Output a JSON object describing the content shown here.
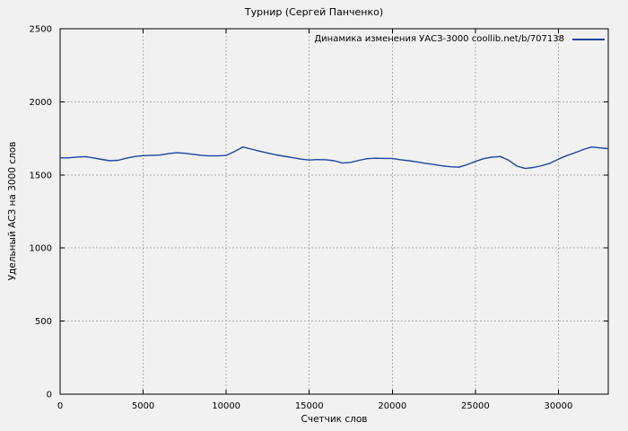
{
  "chart_data": {
    "type": "line",
    "title": "Турнир (Сергей Панченко)",
    "xlabel": "Счетчик слов",
    "ylabel": "Удельный АСЗ на 3000 слов",
    "xlim": [
      0,
      33000
    ],
    "ylim": [
      0,
      2500
    ],
    "xticks": [
      0,
      5000,
      10000,
      15000,
      20000,
      25000,
      30000
    ],
    "yticks": [
      0,
      500,
      1000,
      1500,
      2000,
      2500
    ],
    "grid": true,
    "legend_position": "top-right-inside",
    "series": [
      {
        "name": "Динамика изменения УАСЗ-3000 coollib.net/b/707138",
        "color": "#1c449e",
        "x": [
          0,
          500,
          1000,
          1500,
          2000,
          2500,
          3000,
          3500,
          4000,
          4500,
          5000,
          5500,
          6000,
          6500,
          7000,
          7500,
          8000,
          8500,
          9000,
          9500,
          10000,
          10500,
          11000,
          11500,
          12000,
          12500,
          13000,
          13500,
          14000,
          14500,
          15000,
          15500,
          16000,
          16500,
          17000,
          17500,
          18000,
          18500,
          19000,
          19500,
          20000,
          20500,
          21000,
          21500,
          22000,
          22500,
          23000,
          23500,
          24000,
          24500,
          25000,
          25500,
          26000,
          26500,
          27000,
          27500,
          28000,
          28500,
          29000,
          29500,
          30000,
          30500,
          31000,
          31500,
          32000,
          32500,
          33000
        ],
        "y": [
          1617,
          1617,
          1622,
          1625,
          1617,
          1606,
          1597,
          1600,
          1615,
          1626,
          1632,
          1633,
          1636,
          1645,
          1652,
          1648,
          1641,
          1633,
          1630,
          1630,
          1633,
          1660,
          1691,
          1677,
          1663,
          1650,
          1637,
          1628,
          1618,
          1608,
          1602,
          1605,
          1604,
          1597,
          1581,
          1586,
          1600,
          1611,
          1614,
          1613,
          1613,
          1604,
          1597,
          1589,
          1579,
          1571,
          1562,
          1556,
          1553,
          1570,
          1592,
          1611,
          1622,
          1626,
          1601,
          1560,
          1544,
          1551,
          1563,
          1580,
          1608,
          1632,
          1652,
          1674,
          1691,
          1685,
          1680
        ]
      }
    ]
  },
  "colors": {
    "background": "#f1f1f1",
    "plot_border": "#000000",
    "grid": "#b0b0b0",
    "text": "#000000",
    "line": "#1c449e"
  }
}
